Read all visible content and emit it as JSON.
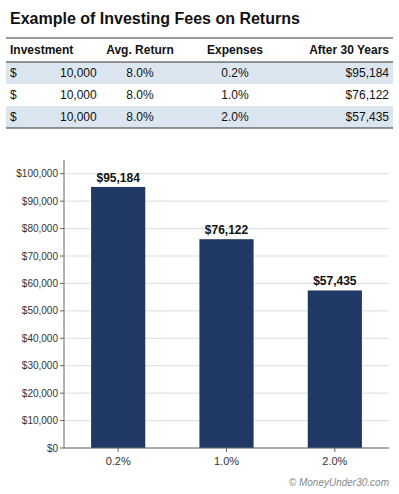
{
  "chart_data": {
    "type": "bar",
    "title": "Example of Investing Fees on Returns",
    "table": {
      "headers": [
        "Investment",
        "Avg. Return",
        "Expenses",
        "After 30 Years"
      ],
      "rows": [
        [
          "$",
          "10,000",
          "8.0%",
          "0.2%",
          "$95,184"
        ],
        [
          "$",
          "10,000",
          "8.0%",
          "1.0%",
          "$76,122"
        ],
        [
          "$",
          "10,000",
          "8.0%",
          "2.0%",
          "$57,435"
        ]
      ],
      "row_colors": [
        "#DCE6F1",
        "#FFFFFF",
        "#DCE6F1"
      ]
    },
    "categories": [
      "0.2%",
      "1.0%",
      "2.0%"
    ],
    "values": [
      95184,
      76122,
      57435
    ],
    "value_labels": [
      "$95,184",
      "$76,122",
      "$57,435"
    ],
    "data_labels": true,
    "color": "#1F3864",
    "ylim": [
      0,
      105000
    ],
    "yticks": [
      {
        "value": 0,
        "label": "$0"
      },
      {
        "value": 10000,
        "label": "$10,000"
      },
      {
        "value": 20000,
        "label": "$20,000"
      },
      {
        "value": 30000,
        "label": "$30,000"
      },
      {
        "value": 40000,
        "label": "$40,000"
      },
      {
        "value": 50000,
        "label": "$50,000"
      },
      {
        "value": 60000,
        "label": "$60,000"
      },
      {
        "value": 70000,
        "label": "$70,000"
      },
      {
        "value": 80000,
        "label": "$80,000"
      },
      {
        "value": 90000,
        "label": "$90,000"
      },
      {
        "value": 100000,
        "label": "$100,000"
      }
    ],
    "grid": true,
    "annotations": [
      "© MoneyUnder30.com"
    ]
  }
}
